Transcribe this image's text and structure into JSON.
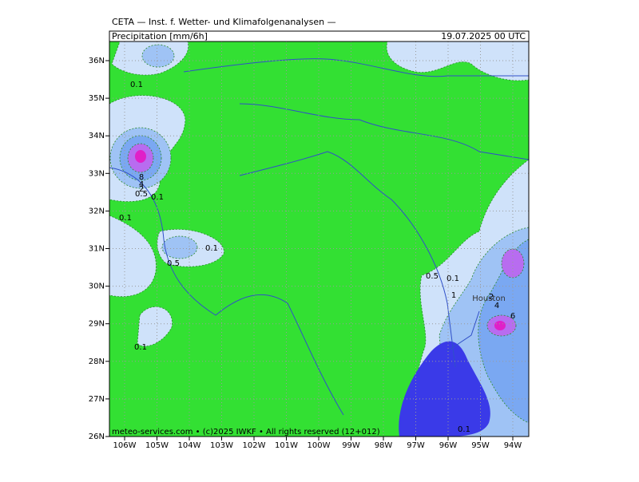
{
  "header": {
    "title": "CETA — Inst. f. Wetter- und Klimafolgenanalysen —",
    "subtitle": "Precipitation [mm/6h]",
    "valid_time": "19.07.2025 00 UTC"
  },
  "axes": {
    "lat_labels": [
      "36N",
      "35N",
      "34N",
      "33N",
      "32N",
      "31N",
      "30N",
      "29N",
      "28N",
      "27N",
      "26N"
    ],
    "lon_labels": [
      "106W",
      "105W",
      "104W",
      "103W",
      "102W",
      "101W",
      "100W",
      "99W",
      "98W",
      "97W",
      "96W",
      "95W",
      "94W"
    ]
  },
  "contour_labels": [
    "0.1",
    "8",
    "4",
    "2",
    "0.5",
    "0.1",
    "0.1",
    "0.1",
    "0.5",
    "0.5",
    "0.1",
    "1",
    "2",
    "4",
    "6",
    "0.1",
    "0.1"
  ],
  "place_labels": [
    "Houston"
  ],
  "footer": "meteo-services.com • (c)2025 IWKF • All rights reserved (12+012)"
}
